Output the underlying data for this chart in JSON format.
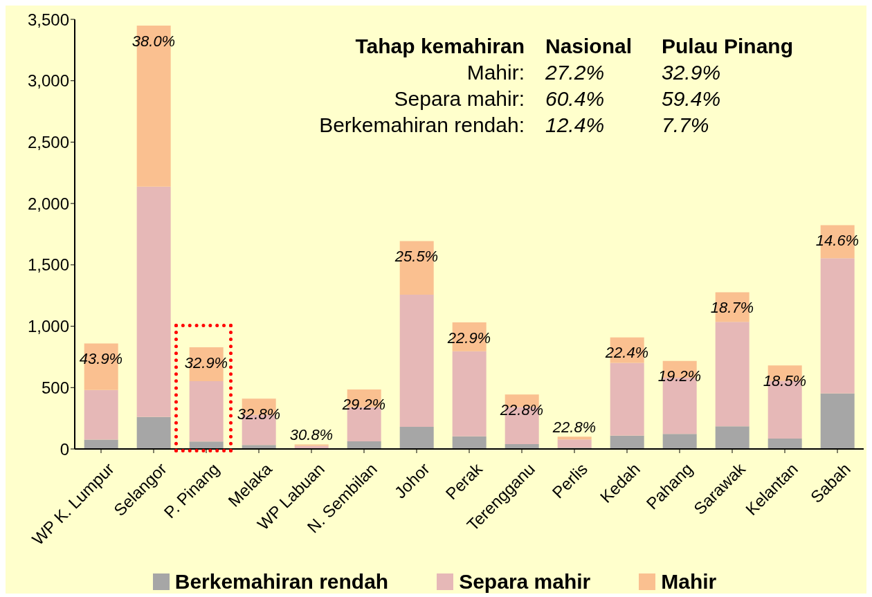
{
  "chart_data": {
    "type": "bar",
    "stacked": true,
    "categories": [
      "WP K. Lumpur",
      "Selangor",
      "P. Pinang",
      "Melaka",
      "WP Labuan",
      "N. Sembilan",
      "Johor",
      "Perak",
      "Terengganu",
      "Perlis",
      "Kedah",
      "Pahang",
      "Sarawak",
      "Kelantan",
      "Sabah"
    ],
    "series": [
      {
        "name": "Berkemahiran rendah",
        "color": "#a6a6a6",
        "values": [
          76,
          261,
          60,
          32,
          null,
          62,
          181,
          103,
          40,
          10,
          109,
          122,
          184,
          85,
          452
        ]
      },
      {
        "name": "Separa mahir",
        "color": "#e6b8b7",
        "values": [
          404,
          1876,
          493,
          245,
          25,
          279,
          1076,
          693,
          301,
          67,
          593,
          458,
          851,
          470,
          1102
        ]
      },
      {
        "name": "Mahir",
        "color": "#fac090",
        "values": [
          380,
          1312,
          275,
          133,
          12,
          144,
          437,
          235,
          103,
          23,
          207,
          137,
          241,
          126,
          269
        ]
      }
    ],
    "ylim": [
      0,
      3500
    ],
    "yticks": [
      0,
      500,
      {
        "value": 1000,
        "label": "1,000"
      },
      {
        "value": 1500,
        "label": "1,500"
      },
      {
        "value": 2000,
        "label": "2,000"
      },
      {
        "value": 2500,
        "label": "2,500"
      },
      {
        "value": 3000,
        "label": "3,000"
      },
      {
        "value": 3500,
        "label": "3,500"
      }
    ],
    "grid": false,
    "legend": "bottom",
    "annotations": [
      "Tahap kemahiran",
      "Nasional",
      "Pulau Pinang",
      "Mahir:",
      "27.2%",
      "32.9%",
      "Separa mahir:",
      "60.4%",
      "59.4%",
      "Berkemahiran rendah:",
      "12.4%",
      "7.7%",
      {
        "text": "43.9%",
        "x": "WP K. Lumpur",
        "y": 860
      },
      {
        "text": "38.0%",
        "x": "Selangor",
        "y": 3449
      },
      {
        "text": "32.9%",
        "x": "P. Pinang",
        "y": 828
      },
      {
        "text": "32.8%",
        "x": "Melaka",
        "y": 410
      },
      {
        "text": "30.8%",
        "x": "WP Labuan",
        "y": 39
      },
      {
        "text": "29.2%",
        "x": "N. Sembilan",
        "y": 485
      },
      {
        "text": "25.5%",
        "x": "Johor",
        "y": 1694
      },
      {
        "text": "22.9%",
        "x": "Perak",
        "y": 1031
      },
      {
        "text": "22.8%",
        "x": "Terengganu",
        "y": 444
      },
      {
        "text": "22.8%",
        "x": "Perlis",
        "y": 100
      },
      {
        "text": "22.4%",
        "x": "Kedah",
        "y": 909
      },
      {
        "text": "19.2%",
        "x": "Pahang",
        "y": 717
      },
      {
        "text": "18.7%",
        "x": "Sarawak",
        "y": 1276
      },
      {
        "text": "18.5%",
        "x": "Kelantan",
        "y": 681
      },
      {
        "text": "14.6%",
        "x": "Sabah",
        "y": 1823
      }
    ]
  }
}
